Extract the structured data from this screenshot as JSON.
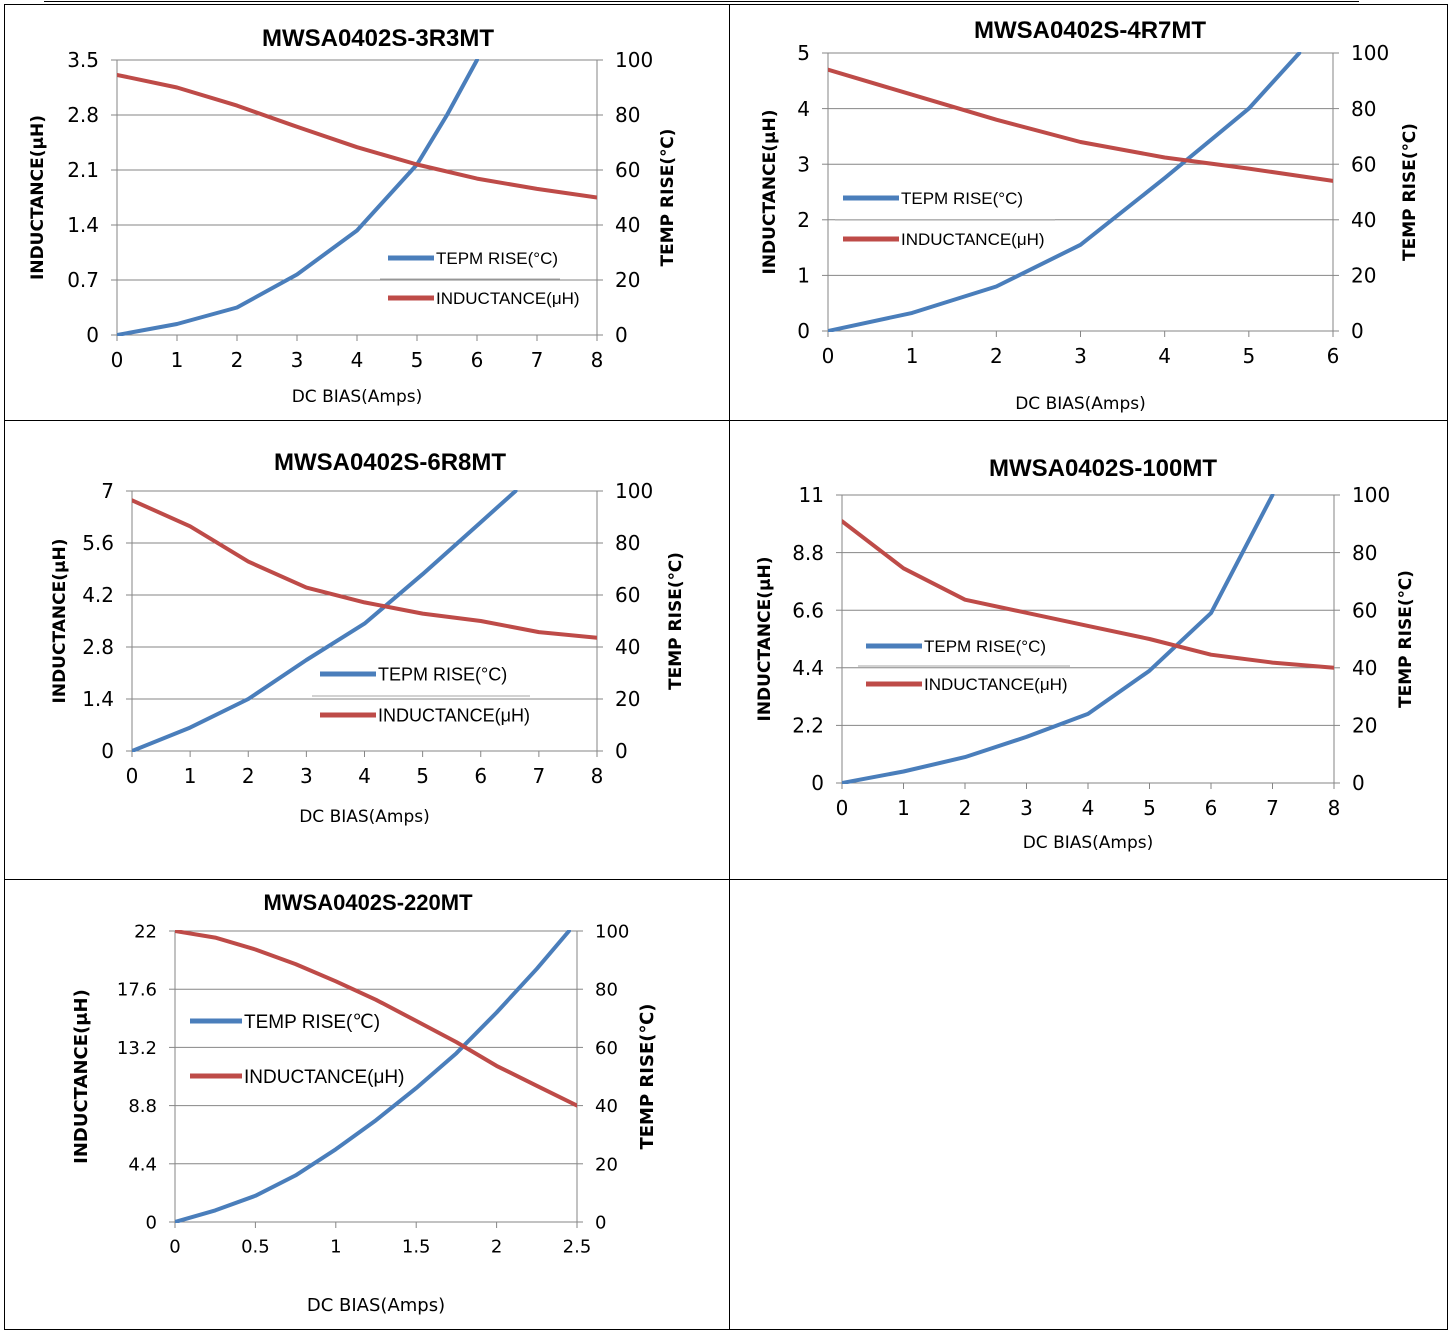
{
  "chart_data": [
    {
      "type": "line",
      "title": "MWSA0402S-3R3MT",
      "xlabel": "DC  BIAS(Amps)",
      "ylabel": "INDUCTANCE(μH)",
      "y2label": "TEMP RISE(℃)",
      "x_ticks": [
        "0",
        "1",
        "2",
        "3",
        "4",
        "5",
        "6",
        "7",
        "8"
      ],
      "y_ticks": [
        "0",
        "0.7",
        "1.4",
        "2.1",
        "2.8",
        "3.5"
      ],
      "y2_ticks": [
        "0",
        "20",
        "40",
        "60",
        "80",
        "100"
      ],
      "xlim": [
        0,
        8
      ],
      "ylim": [
        0,
        3.5
      ],
      "y2lim": [
        0,
        100
      ],
      "grid": "horizontal",
      "legend_position": "center-right",
      "series": [
        {
          "name": "TEPM RISE(°C)",
          "axis": "right",
          "color": "#4a7ebb",
          "x": [
            0,
            1,
            2,
            3,
            4,
            5,
            5.5,
            6
          ],
          "y": [
            0,
            4,
            10,
            22,
            38,
            62,
            80,
            100
          ]
        },
        {
          "name": "INDUCTANCE(μH)",
          "axis": "left",
          "color": "#be4b48",
          "x": [
            0,
            1,
            2,
            3,
            4,
            5,
            6,
            7,
            8
          ],
          "y": [
            3.31,
            3.15,
            2.92,
            2.65,
            2.39,
            2.17,
            1.99,
            1.86,
            1.75
          ]
        }
      ]
    },
    {
      "type": "line",
      "title": "MWSA0402S-4R7MT",
      "xlabel": "DC  BIAS(Amps)",
      "ylabel": "INDUCTANCE(μH)",
      "y2label": "TEMP RISE(℃)",
      "x_ticks": [
        "0",
        "1",
        "2",
        "3",
        "4",
        "5",
        "6"
      ],
      "y_ticks": [
        "0",
        "1",
        "2",
        "3",
        "4",
        "5"
      ],
      "y2_ticks": [
        "0",
        "20",
        "40",
        "60",
        "80",
        "100"
      ],
      "xlim": [
        0,
        6
      ],
      "ylim": [
        0,
        5
      ],
      "y2lim": [
        0,
        100
      ],
      "grid": "horizontal",
      "legend_position": "center-left",
      "series": [
        {
          "name": "TEPM RISE(°C)",
          "axis": "right",
          "color": "#4a7ebb",
          "x": [
            0,
            1,
            2,
            3,
            4,
            5,
            5.6
          ],
          "y": [
            0,
            6.5,
            16,
            31,
            55,
            80,
            100
          ]
        },
        {
          "name": "INDUCTANCE(μH)",
          "axis": "left",
          "color": "#be4b48",
          "x": [
            0,
            1,
            2,
            3,
            4,
            5,
            6
          ],
          "y": [
            4.7,
            4.25,
            3.8,
            3.4,
            3.12,
            2.92,
            2.7
          ]
        }
      ]
    },
    {
      "type": "line",
      "title": "MWSA0402S-6R8MT",
      "xlabel": "DC  BIAS(Amps)",
      "ylabel": "INDUCTANCE(μH)",
      "y2label": "TEMP RISE(℃)",
      "x_ticks": [
        "0",
        "1",
        "2",
        "3",
        "4",
        "5",
        "6",
        "7",
        "8"
      ],
      "y_ticks": [
        "0",
        "1.4",
        "2.8",
        "4.2",
        "5.6",
        "7"
      ],
      "y2_ticks": [
        "0",
        "20",
        "40",
        "60",
        "80",
        "100"
      ],
      "xlim": [
        0,
        8
      ],
      "ylim": [
        0,
        7
      ],
      "y2lim": [
        0,
        100
      ],
      "grid": "horizontal",
      "legend_position": "center-right",
      "series": [
        {
          "name": "TEPM RISE(°C)",
          "axis": "right",
          "color": "#4a7ebb",
          "x": [
            0,
            1,
            2,
            3,
            4,
            5,
            6,
            6.6
          ],
          "y": [
            0,
            9,
            20,
            35,
            49,
            68,
            88,
            100
          ]
        },
        {
          "name": "INDUCTANCE(μH)",
          "axis": "left",
          "color": "#be4b48",
          "x": [
            0,
            1,
            2,
            3,
            4,
            5,
            6,
            7,
            8
          ],
          "y": [
            6.75,
            6.05,
            5.1,
            4.4,
            4.0,
            3.7,
            3.5,
            3.2,
            3.05
          ]
        }
      ]
    },
    {
      "type": "line",
      "title": "MWSA0402S-100MT",
      "xlabel": "DC  BIAS(Amps)",
      "ylabel": "INDUCTANCE(μH)",
      "y2label": "TEMP RISE(℃)",
      "x_ticks": [
        "0",
        "1",
        "2",
        "3",
        "4",
        "5",
        "6",
        "7",
        "8"
      ],
      "y_ticks": [
        "0",
        "2.2",
        "4.4",
        "6.6",
        "8.8",
        "11"
      ],
      "y2_ticks": [
        "0",
        "20",
        "40",
        "60",
        "80",
        "100"
      ],
      "xlim": [
        0,
        8
      ],
      "ylim": [
        0,
        11
      ],
      "y2lim": [
        0,
        100
      ],
      "grid": "horizontal",
      "legend_position": "center-left",
      "series": [
        {
          "name": "TEPM RISE(°C)",
          "axis": "right",
          "color": "#4a7ebb",
          "x": [
            0,
            1,
            2,
            3,
            4,
            5,
            6,
            7
          ],
          "y": [
            0,
            4,
            9,
            16,
            24,
            39,
            59,
            100
          ]
        },
        {
          "name": "INDUCTANCE(μH)",
          "axis": "left",
          "color": "#be4b48",
          "x": [
            0,
            1,
            2,
            3,
            4,
            5,
            6,
            7,
            8
          ],
          "y": [
            10.0,
            8.2,
            7.0,
            6.5,
            6.0,
            5.5,
            4.9,
            4.6,
            4.4
          ]
        }
      ]
    },
    {
      "type": "line",
      "title": "MWSA0402S-220MT",
      "xlabel": "DC  BIAS(Amps)",
      "ylabel": "INDUCTANCE(μH)",
      "y2label": "TEMP RISE(℃)",
      "x_ticks": [
        "0",
        "0.5",
        "1",
        "1.5",
        "2",
        "2.5"
      ],
      "y_ticks": [
        "0",
        "4.4",
        "8.8",
        "13.2",
        "17.6",
        "22"
      ],
      "y2_ticks": [
        "0",
        "20",
        "40",
        "60",
        "80",
        "100"
      ],
      "xlim": [
        0,
        2.5
      ],
      "ylim": [
        0,
        22
      ],
      "y2lim": [
        0,
        100
      ],
      "grid": "horizontal",
      "legend_position": "top-left",
      "series": [
        {
          "name": "TEMP RISE(℃)",
          "axis": "right",
          "color": "#4a7ebb",
          "x": [
            0,
            0.25,
            0.5,
            0.75,
            1,
            1.25,
            1.5,
            1.75,
            2,
            2.25,
            2.45
          ],
          "y": [
            0,
            4,
            9,
            16,
            25,
            35,
            46,
            58,
            72,
            87,
            100
          ]
        },
        {
          "name": "INDUCTANCE(μH)",
          "axis": "left",
          "color": "#be4b48",
          "x": [
            0,
            0.25,
            0.5,
            0.75,
            1,
            1.25,
            1.5,
            1.75,
            2,
            2.25,
            2.5
          ],
          "y": [
            22,
            21.5,
            20.6,
            19.5,
            18.2,
            16.8,
            15.2,
            13.6,
            11.8,
            10.3,
            8.8
          ]
        }
      ]
    }
  ]
}
